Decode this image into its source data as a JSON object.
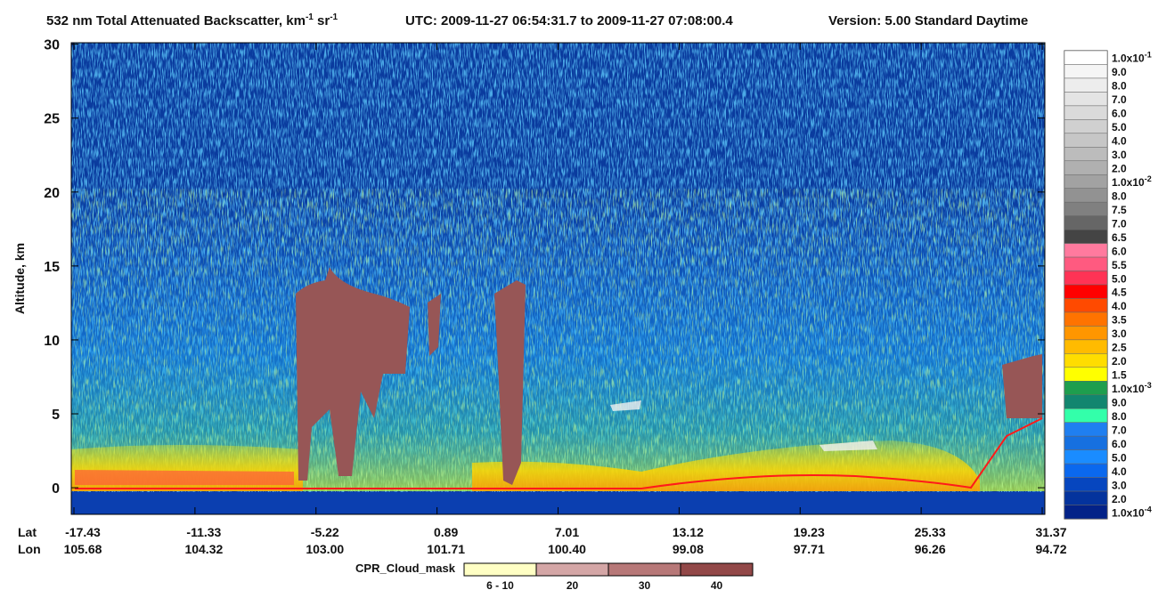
{
  "chart_data": {
    "type": "curtain",
    "title": [
      "532 nm Total Attenuated Backscatter, km",
      "-1",
      " sr",
      "-1"
    ],
    "utc": "UTC:  2009-11-27 06:54:31.7  to  2009-11-27 07:08:00.4",
    "version": "Version: 5.00  Standard  Daytime",
    "ylabel": "Altitude, km",
    "ylim": [
      -1.8,
      30.1
    ],
    "yticks": [
      0,
      5,
      10,
      15,
      20,
      25,
      30
    ],
    "x_rows": [
      "Lat",
      "Lon"
    ],
    "lat": [
      "-17.43",
      "-11.33",
      "-5.22",
      "0.89",
      "7.01",
      "13.12",
      "19.23",
      "25.33",
      "31.37"
    ],
    "lon": [
      "105.68",
      "104.32",
      "103.00",
      "101.71",
      "100.40",
      "99.08",
      "97.71",
      "96.26",
      "94.72"
    ],
    "colorbar": {
      "labels": [
        {
          "text": "1.0x10",
          "sup": "-1"
        },
        "9.0",
        "8.0",
        "7.0",
        "6.0",
        "5.0",
        "4.0",
        "3.0",
        "2.0",
        {
          "text": "1.0x10",
          "sup": "-2"
        },
        "8.0",
        "7.5",
        "7.0",
        "6.5",
        "6.0",
        "5.5",
        "5.0",
        "4.5",
        "4.0",
        "3.5",
        "3.0",
        "2.5",
        "2.0",
        "1.5",
        {
          "text": "1.0x10",
          "sup": "-3"
        },
        "9.0",
        "8.0",
        "7.0",
        "6.0",
        "5.0",
        "4.0",
        "3.0",
        "2.0",
        {
          "text": "1.0x10",
          "sup": "-4"
        }
      ],
      "colors": [
        "#ffffff",
        "#f5f5f5",
        "#ededed",
        "#e4e4e4",
        "#dadada",
        "#d0d0d0",
        "#c6c6c6",
        "#bcbcbc",
        "#b0b0b0",
        "#a2a2a2",
        "#929292",
        "#808080",
        "#666666",
        "#444444",
        "#ff7a9e",
        "#ff5a80",
        "#ff3355",
        "#ff0000",
        "#ff4a00",
        "#ff7300",
        "#ff9600",
        "#ffbb00",
        "#ffdd00",
        "#ffff00",
        "#1e9e4e",
        "#12866f",
        "#33ffaa",
        "#1f7ff0",
        "#1670e0",
        "#1a8cff",
        "#0a68ee",
        "#0646bf",
        "#04339d",
        "#032288"
      ]
    },
    "cpr_cloud_mask": {
      "title": "CPR_Cloud_mask",
      "labels": [
        "6 - 10",
        "20",
        "30",
        "40"
      ],
      "colors": [
        "#ffffc4",
        "#d4a6a6",
        "#b77878",
        "#924848"
      ]
    }
  }
}
